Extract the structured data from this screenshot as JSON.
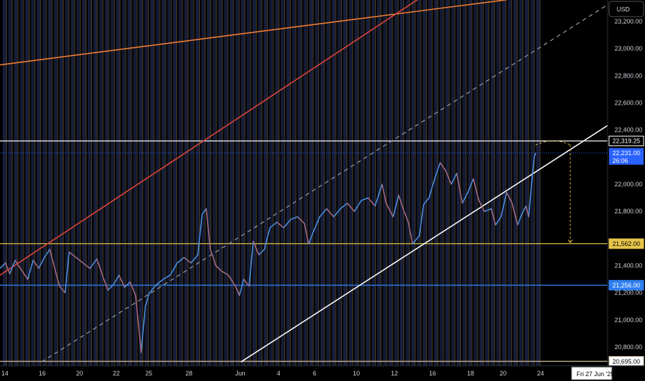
{
  "chart_data": {
    "type": "line",
    "currency": "USD",
    "y_ticks": [
      23200,
      23000,
      22800,
      22600,
      22400,
      22000,
      21800,
      21400,
      21200,
      21000,
      20800
    ],
    "y_tick_labels": [
      "23,200.00",
      "23,000.00",
      "22,800.00",
      "22,600.00",
      "22,400.00",
      "22,000.00",
      "21,800.00",
      "21,400.00",
      "21,200.00",
      "21,000.00",
      "20,800.00"
    ],
    "ylim": [
      20680,
      23400
    ],
    "x_labels": [
      "14",
      "16",
      "20",
      "22",
      "25",
      "28",
      "Jun",
      "4",
      "6",
      "10",
      "12",
      "16",
      "18",
      "20",
      "24"
    ],
    "crosshair_date": "Fri 27 Jun '25",
    "price_levels": [
      {
        "value": 22319.25,
        "label": "22,319.25",
        "color": "#ffffff",
        "bg": "#000000",
        "fg": "#ffffff"
      },
      {
        "value": 21562.0,
        "label": "21,562.00",
        "color": "#e5c44a",
        "bg": "#e5c44a",
        "fg": "#000000"
      },
      {
        "value": 21256.0,
        "label": "21,256.00",
        "color": "#2f7ff0",
        "bg": "#2f7ff0",
        "fg": "#ffffff"
      },
      {
        "value": 20695.0,
        "label": "20,695.00",
        "color": "#c8b89a",
        "bg": "#ffffff",
        "fg": "#000000"
      }
    ],
    "last_price": {
      "value": 22231.0,
      "label": "22,231.00",
      "countdown": "26:06",
      "color": "#2962ff"
    },
    "price_path": [
      [
        0,
        21380
      ],
      [
        8,
        21420
      ],
      [
        14,
        21340
      ],
      [
        22,
        21440
      ],
      [
        32,
        21360
      ],
      [
        40,
        21300
      ],
      [
        48,
        21440
      ],
      [
        56,
        21380
      ],
      [
        64,
        21460
      ],
      [
        72,
        21520
      ],
      [
        78,
        21400
      ],
      [
        86,
        21250
      ],
      [
        94,
        21200
      ],
      [
        100,
        21500
      ],
      [
        110,
        21460
      ],
      [
        120,
        21420
      ],
      [
        130,
        21380
      ],
      [
        140,
        21450
      ],
      [
        150,
        21300
      ],
      [
        156,
        21220
      ],
      [
        164,
        21260
      ],
      [
        172,
        21330
      ],
      [
        180,
        21240
      ],
      [
        188,
        21280
      ],
      [
        196,
        21180
      ],
      [
        204,
        20760
      ],
      [
        210,
        21100
      ],
      [
        216,
        21200
      ],
      [
        226,
        21260
      ],
      [
        236,
        21300
      ],
      [
        246,
        21330
      ],
      [
        256,
        21420
      ],
      [
        266,
        21460
      ],
      [
        276,
        21420
      ],
      [
        286,
        21480
      ],
      [
        292,
        21780
      ],
      [
        298,
        21820
      ],
      [
        304,
        21520
      ],
      [
        312,
        21400
      ],
      [
        320,
        21360
      ],
      [
        330,
        21330
      ],
      [
        340,
        21250
      ],
      [
        346,
        21180
      ],
      [
        352,
        21300
      ],
      [
        360,
        21250
      ],
      [
        366,
        21580
      ],
      [
        374,
        21480
      ],
      [
        382,
        21520
      ],
      [
        390,
        21680
      ],
      [
        400,
        21720
      ],
      [
        410,
        21680
      ],
      [
        420,
        21740
      ],
      [
        430,
        21760
      ],
      [
        440,
        21710
      ],
      [
        446,
        21560
      ],
      [
        452,
        21640
      ],
      [
        462,
        21760
      ],
      [
        472,
        21820
      ],
      [
        482,
        21760
      ],
      [
        492,
        21820
      ],
      [
        502,
        21860
      ],
      [
        512,
        21800
      ],
      [
        522,
        21880
      ],
      [
        532,
        21900
      ],
      [
        542,
        21840
      ],
      [
        552,
        22000
      ],
      [
        558,
        21860
      ],
      [
        568,
        21760
      ],
      [
        576,
        21920
      ],
      [
        584,
        21800
      ],
      [
        590,
        21720
      ],
      [
        596,
        21560
      ],
      [
        606,
        21620
      ],
      [
        612,
        21850
      ],
      [
        620,
        21900
      ],
      [
        628,
        22040
      ],
      [
        636,
        22160
      ],
      [
        644,
        22100
      ],
      [
        652,
        22000
      ],
      [
        660,
        22080
      ],
      [
        668,
        21860
      ],
      [
        676,
        21940
      ],
      [
        684,
        22040
      ],
      [
        692,
        21880
      ],
      [
        700,
        21800
      ],
      [
        710,
        21820
      ],
      [
        716,
        21700
      ],
      [
        724,
        21760
      ],
      [
        732,
        21940
      ],
      [
        740,
        21860
      ],
      [
        748,
        21700
      ],
      [
        754,
        21780
      ],
      [
        760,
        21840
      ],
      [
        764,
        21760
      ],
      [
        768,
        22000
      ],
      [
        772,
        22200
      ],
      [
        774,
        22231
      ]
    ],
    "trend_lines": [
      {
        "name": "orange",
        "color": "#f57f32",
        "points": [
          [
            0,
            22880
          ],
          [
            732,
            23360
          ]
        ]
      },
      {
        "name": "red",
        "color": "#e3453a",
        "points": [
          [
            0,
            21330
          ],
          [
            612,
            23390
          ]
        ],
        "clip": true
      },
      {
        "name": "white",
        "color": "#ffffff",
        "points": [
          [
            348,
            20690
          ],
          [
            880,
            22440
          ]
        ]
      },
      {
        "name": "dashed",
        "color": "#9aa0ac",
        "points": [
          [
            60,
            20690
          ],
          [
            880,
            23330
          ]
        ],
        "dashed": true
      }
    ],
    "projection": {
      "color": "#e5c44a",
      "arc": [
        [
          774,
          22290
        ],
        [
          800,
          22320
        ],
        [
          824,
          22290
        ]
      ],
      "drop": [
        [
          824,
          22290
        ],
        [
          824,
          21570
        ]
      ]
    }
  }
}
